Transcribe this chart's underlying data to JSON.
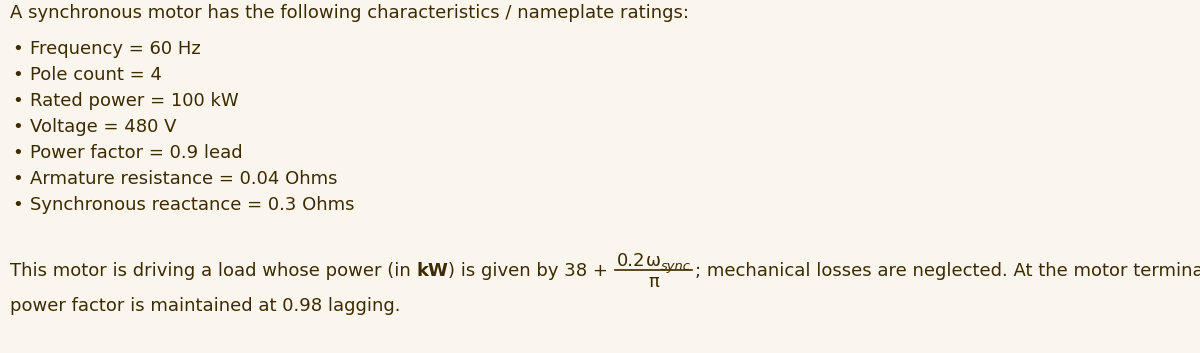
{
  "background_color": "#faf6ee",
  "text_color": "#3d2b00",
  "title": "A synchronous motor has the following characteristics / nameplate ratings:",
  "bullets": [
    "Frequency = 60 Hz",
    "Pole count = 4",
    "Rated power = 100 kW",
    "Voltage = 480 V",
    "Power factor = 0.9 lead",
    "Armature resistance = 0.04 Ohms",
    "Synchronous reactance = 0.3 Ohms"
  ],
  "bottom_line1_before": "This motor is driving a load whose power (in ",
  "bottom_line1_bold": "kW",
  "bottom_line1_after": ") is given by 38 + ",
  "fraction_numerator_main": "0.2",
  "fraction_omega": "ω",
  "fraction_numerator_subscript": "sync",
  "fraction_denominator": "π",
  "bottom_line1_end": "; mechanical losses are neglected. At the motor terminals, the",
  "bottom_line2": "power factor is maintained at 0.98 lagging.",
  "font_size": 13.0,
  "title_font_size": 13.0
}
